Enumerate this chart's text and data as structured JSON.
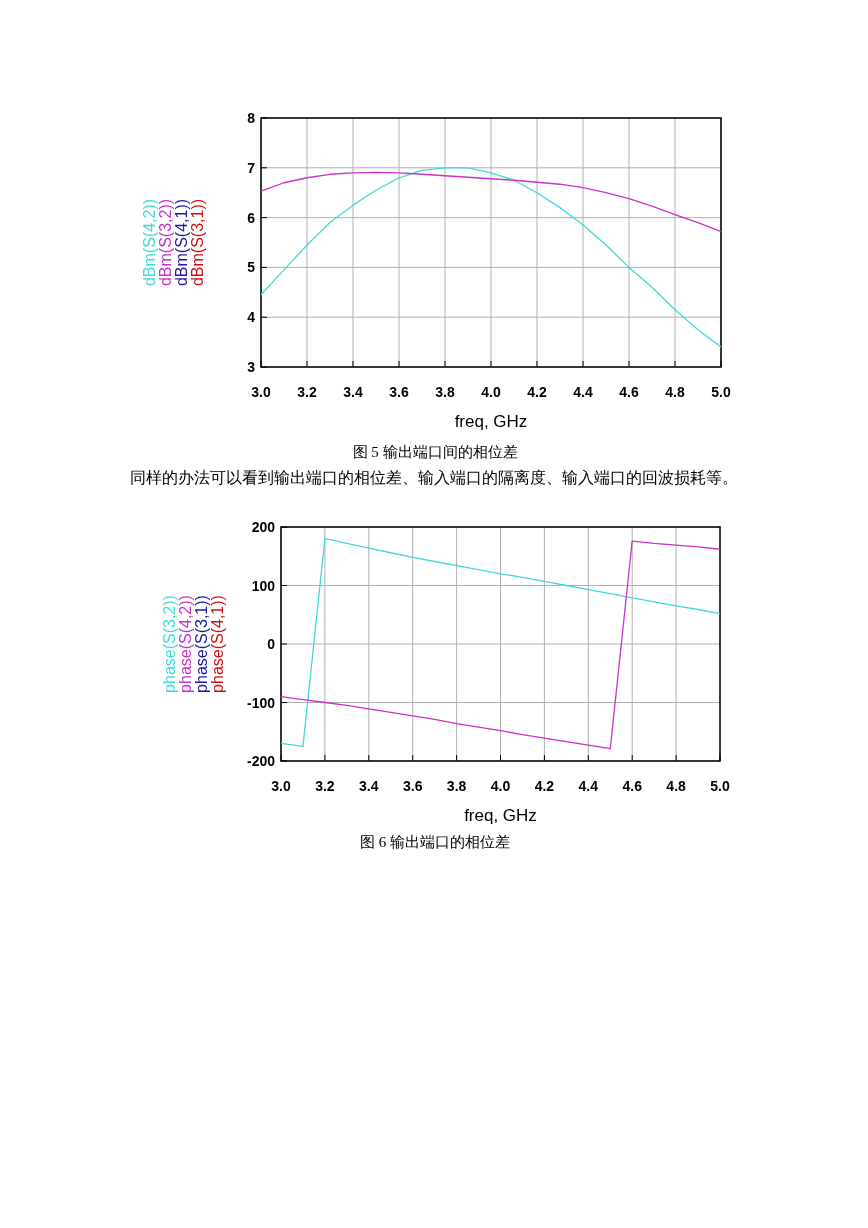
{
  "chart_data": [
    {
      "type": "line",
      "xlabel": "freq, GHz",
      "legend": "left",
      "grid": true,
      "annotations": [
        "图 5  输出端口间的相位差",
        "同样的办法可以看到输出端口的相位差、输入端口的隔离度、输入端口的回波损耗等。"
      ],
      "x": [
        3.0,
        3.1,
        3.2,
        3.3,
        3.4,
        3.5,
        3.6,
        3.7,
        3.8,
        3.9,
        4.0,
        4.1,
        4.2,
        4.3,
        4.4,
        4.5,
        4.6,
        4.7,
        4.8,
        4.9,
        5.0
      ],
      "xlim": [
        3,
        5
      ],
      "ylim": [
        3,
        8
      ],
      "xticks": [
        {
          "value": 3,
          "label": "3.0"
        },
        {
          "value": 3.2,
          "label": "3.2"
        },
        {
          "value": 3.4,
          "label": "3.4"
        },
        {
          "value": 3.6,
          "label": "3.6"
        },
        {
          "value": 3.8,
          "label": "3.8"
        },
        {
          "value": 4,
          "label": "4.0"
        },
        {
          "value": 4.2,
          "label": "4.2"
        },
        {
          "value": 4.4,
          "label": "4.4"
        },
        {
          "value": 4.6,
          "label": "4.6"
        },
        {
          "value": 4.8,
          "label": "4.8"
        },
        {
          "value": 5,
          "label": "5.0"
        }
      ],
      "yticks": [
        3,
        4,
        5,
        6,
        7,
        8
      ],
      "series": [
        {
          "name": "dBm(S(4,2))",
          "color": "#3fd9d9",
          "values": [
            4.45,
            4.95,
            5.45,
            5.9,
            6.25,
            6.55,
            6.8,
            6.95,
            7.0,
            7.0,
            6.9,
            6.75,
            6.5,
            6.2,
            5.85,
            5.45,
            5.0,
            4.6,
            4.15,
            3.75,
            3.4
          ]
        },
        {
          "name": "dBm(S(3,2))",
          "color": "#c832c8",
          "values": [
            6.53,
            6.7,
            6.8,
            6.87,
            6.9,
            6.91,
            6.9,
            6.87,
            6.84,
            6.81,
            6.78,
            6.75,
            6.71,
            6.67,
            6.6,
            6.5,
            6.38,
            6.23,
            6.06,
            5.9,
            5.72
          ]
        },
        {
          "name": "dBm(S(4,1))",
          "color": "#1a1aa0",
          "values": [
            null,
            null,
            null,
            null,
            null,
            null,
            null,
            null,
            null,
            null,
            null,
            null,
            null,
            null,
            null,
            null,
            null,
            null,
            null,
            null,
            null
          ]
        },
        {
          "name": "dBm(S(3,1))",
          "color": "#d01010",
          "values": [
            null,
            null,
            null,
            null,
            null,
            null,
            null,
            null,
            null,
            null,
            null,
            null,
            null,
            null,
            null,
            null,
            null,
            null,
            null,
            null,
            null
          ]
        }
      ]
    },
    {
      "type": "line",
      "xlabel": "freq, GHz",
      "legend": "left",
      "grid": true,
      "annotations": [
        "图 6  输出端口的相位差"
      ],
      "x": [
        3.0,
        3.1,
        3.2,
        3.3,
        3.4,
        3.5,
        3.6,
        3.7,
        3.8,
        3.9,
        4.0,
        4.1,
        4.2,
        4.3,
        4.4,
        4.5,
        4.6,
        4.7,
        4.8,
        4.9,
        5.0
      ],
      "xlim": [
        3,
        5
      ],
      "ylim": [
        -200,
        200
      ],
      "xticks": [
        {
          "value": 3,
          "label": "3.0"
        },
        {
          "value": 3.2,
          "label": "3.2"
        },
        {
          "value": 3.4,
          "label": "3.4"
        },
        {
          "value": 3.6,
          "label": "3.6"
        },
        {
          "value": 3.8,
          "label": "3.8"
        },
        {
          "value": 4,
          "label": "4.0"
        },
        {
          "value": 4.2,
          "label": "4.2"
        },
        {
          "value": 4.4,
          "label": "4.4"
        },
        {
          "value": 4.6,
          "label": "4.6"
        },
        {
          "value": 4.8,
          "label": "4.8"
        },
        {
          "value": 5,
          "label": "5.0"
        }
      ],
      "yticks": [
        -200,
        -100,
        0,
        100,
        200
      ],
      "series": [
        {
          "name": "phase(S(3,2))",
          "color": "#3fd9d9",
          "values": [
            -170,
            -175,
            180,
            172,
            164,
            156,
            148,
            141,
            134,
            127,
            120,
            114,
            107,
            100,
            93,
            86,
            79,
            72,
            65,
            59,
            52
          ]
        },
        {
          "name": "phase(S(4,2))",
          "color": "#c832c8",
          "values": [
            -90,
            -95,
            -100,
            -105,
            -111,
            -117,
            -123,
            -129,
            -136,
            -142,
            -148,
            -155,
            -161,
            -167,
            -173,
            -179,
            176,
            172,
            169,
            166,
            162
          ]
        },
        {
          "name": "phase(S(3,1))",
          "color": "#1a1aa0",
          "values": [
            null,
            null,
            null,
            null,
            null,
            null,
            null,
            null,
            null,
            null,
            null,
            null,
            null,
            null,
            null,
            null,
            null,
            null,
            null,
            null,
            null
          ]
        },
        {
          "name": "phase(S(4,1))",
          "color": "#d01010",
          "values": [
            null,
            null,
            null,
            null,
            null,
            null,
            null,
            null,
            null,
            null,
            null,
            null,
            null,
            null,
            null,
            null,
            null,
            null,
            null,
            null,
            null
          ]
        }
      ]
    }
  ]
}
